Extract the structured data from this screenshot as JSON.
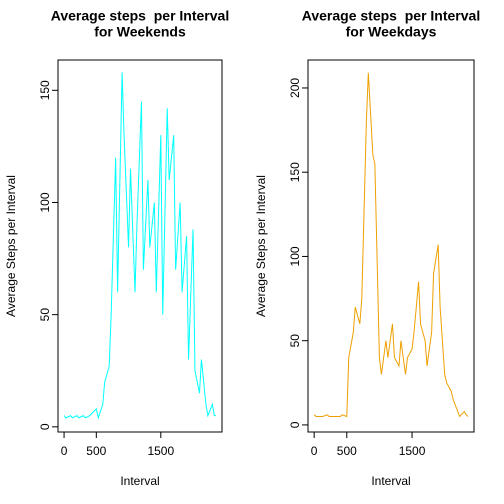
{
  "chart_data": [
    {
      "type": "line",
      "title": [
        "Average steps  per Interval",
        "for Weekends"
      ],
      "xlabel": "Interval",
      "ylabel": "Average Steps per Interval",
      "x": [
        0,
        30,
        100,
        130,
        200,
        230,
        300,
        330,
        400,
        430,
        500,
        530,
        600,
        630,
        700,
        730,
        800,
        830,
        900,
        930,
        1000,
        1030,
        1100,
        1130,
        1200,
        1230,
        1300,
        1330,
        1400,
        1430,
        1500,
        1530,
        1600,
        1630,
        1700,
        1730,
        1800,
        1830,
        1900,
        1930,
        2000,
        2030,
        2100,
        2130,
        2200,
        2230,
        2300,
        2330,
        2355
      ],
      "series": [
        {
          "name": "Weekends",
          "color": "#00ffff",
          "values": [
            5,
            4,
            5,
            4,
            5,
            4,
            5,
            4,
            5,
            6,
            8,
            4,
            10,
            20,
            27,
            50,
            120,
            60,
            158,
            130,
            80,
            115,
            60,
            90,
            145,
            70,
            110,
            80,
            100,
            60,
            130,
            50,
            142,
            110,
            130,
            70,
            100,
            60,
            85,
            30,
            88,
            25,
            15,
            30,
            10,
            5,
            10,
            5,
            5
          ]
        }
      ],
      "xlim": [
        -94.2,
        2449.2
      ],
      "ylim": [
        -2.3,
        163.5
      ],
      "xticks": [
        0,
        500,
        1500
      ],
      "yticks": [
        0,
        50,
        100,
        150
      ]
    },
    {
      "type": "line",
      "title": [
        "Average steps  per Interval",
        "for Weekdays"
      ],
      "xlabel": "Interval",
      "ylabel": "Average Steps per Interval",
      "x": [
        0,
        30,
        100,
        130,
        200,
        230,
        300,
        330,
        400,
        430,
        500,
        530,
        600,
        630,
        700,
        730,
        800,
        830,
        900,
        930,
        1000,
        1030,
        1100,
        1130,
        1200,
        1230,
        1300,
        1330,
        1400,
        1430,
        1500,
        1530,
        1600,
        1630,
        1700,
        1730,
        1800,
        1830,
        1900,
        1930,
        2000,
        2030,
        2100,
        2130,
        2200,
        2230,
        2300,
        2330,
        2355
      ],
      "series": [
        {
          "name": "Weekdays",
          "color": "#eea000",
          "values": [
            6,
            5,
            5,
            5,
            6,
            5,
            5,
            5,
            5,
            6,
            5,
            40,
            55,
            70,
            60,
            75,
            180,
            209,
            160,
            155,
            40,
            30,
            50,
            40,
            60,
            40,
            35,
            50,
            30,
            40,
            45,
            55,
            85,
            60,
            50,
            35,
            55,
            90,
            107,
            70,
            30,
            25,
            20,
            15,
            8,
            5,
            8,
            6,
            5
          ]
        }
      ],
      "xlim": [
        -94.2,
        2449.2
      ],
      "ylim": [
        -4.2,
        216.6
      ],
      "xticks": [
        0,
        500,
        1500
      ],
      "yticks": [
        0,
        50,
        100,
        150,
        200
      ]
    }
  ]
}
